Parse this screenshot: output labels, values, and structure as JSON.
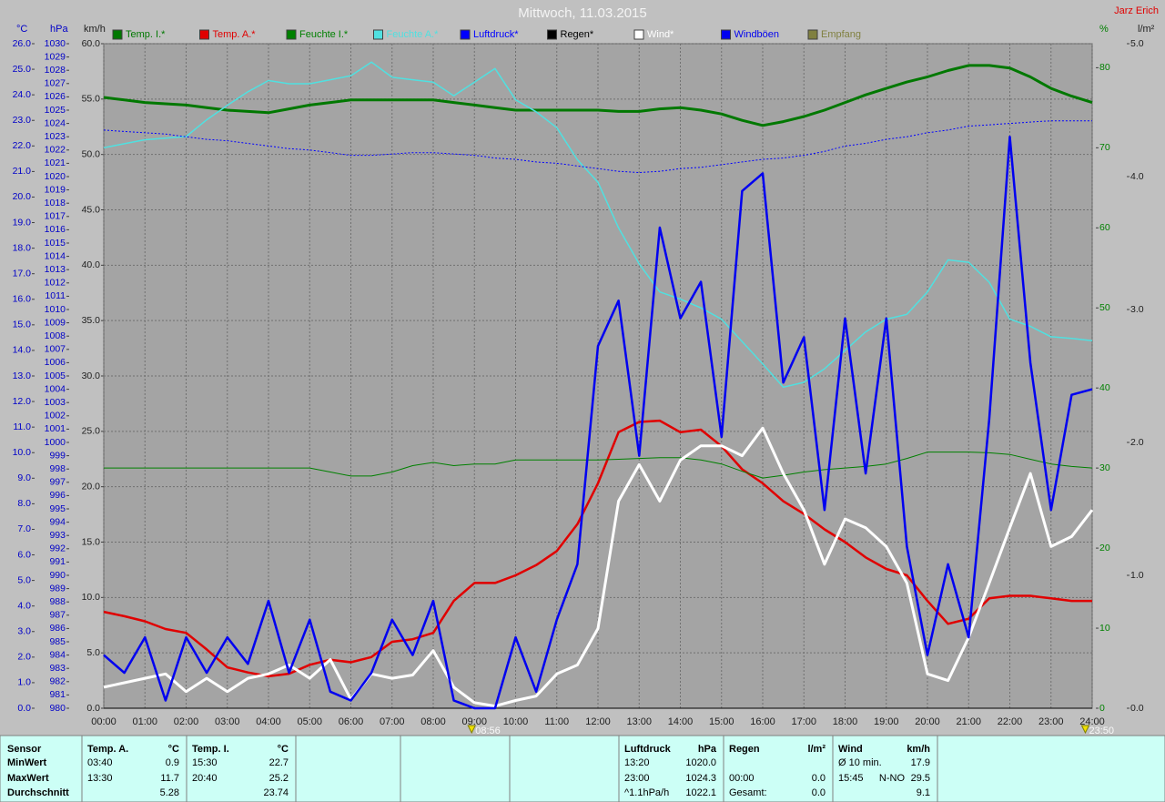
{
  "chart_data": {
    "type": "line",
    "title": "Mittwoch, 11.03.2015",
    "author": "Jarz Erich",
    "xlim": [
      0,
      24
    ],
    "xticks": [
      {
        "value": 0,
        "label": "00:00"
      },
      {
        "value": 1,
        "label": "01:00"
      },
      {
        "value": 2,
        "label": "02:00"
      },
      {
        "value": 3,
        "label": "03:00"
      },
      {
        "value": 4,
        "label": "04:00"
      },
      {
        "value": 5,
        "label": "05:00"
      },
      {
        "value": 6,
        "label": "06:00"
      },
      {
        "value": 7,
        "label": "07:00"
      },
      {
        "value": 8,
        "label": "08:00"
      },
      {
        "value": 9,
        "label": "09:00"
      },
      {
        "value": 10,
        "label": "10:00"
      },
      {
        "value": 11,
        "label": "11:00"
      },
      {
        "value": 12,
        "label": "12:00"
      },
      {
        "value": 13,
        "label": "13:00"
      },
      {
        "value": 14,
        "label": "14:00"
      },
      {
        "value": 15,
        "label": "15:00"
      },
      {
        "value": 16,
        "label": "16:00"
      },
      {
        "value": 17,
        "label": "17:00"
      },
      {
        "value": 18,
        "label": "18:00"
      },
      {
        "value": 19,
        "label": "19:00"
      },
      {
        "value": 20,
        "label": "20:00"
      },
      {
        "value": 21,
        "label": "21:00"
      },
      {
        "value": 22,
        "label": "22:00"
      },
      {
        "value": 23,
        "label": "23:00"
      },
      {
        "value": 24,
        "label": "24:00"
      }
    ],
    "markers": [
      {
        "value": 8.9333,
        "label": "08:56"
      },
      {
        "value": 23.8333,
        "label": "23:50"
      }
    ],
    "axes": [
      {
        "label": "°C",
        "color": "#0000c8",
        "ylim": [
          0,
          26
        ],
        "yticks": [
          {
            "value": 0,
            "label": "0.0"
          },
          {
            "value": 1,
            "label": "1.0"
          },
          {
            "value": 2,
            "label": "2.0"
          },
          {
            "value": 3,
            "label": "3.0"
          },
          {
            "value": 4,
            "label": "4.0"
          },
          {
            "value": 5,
            "label": "5.0"
          },
          {
            "value": 6,
            "label": "6.0"
          },
          {
            "value": 7,
            "label": "7.0"
          },
          {
            "value": 8,
            "label": "8.0"
          },
          {
            "value": 9,
            "label": "9.0"
          },
          {
            "value": 10,
            "label": "10.0"
          },
          {
            "value": 11,
            "label": "11.0"
          },
          {
            "value": 12,
            "label": "12.0"
          },
          {
            "value": 13,
            "label": "13.0"
          },
          {
            "value": 14,
            "label": "14.0"
          },
          {
            "value": 15,
            "label": "15.0"
          },
          {
            "value": 16,
            "label": "16.0"
          },
          {
            "value": 17,
            "label": "17.0"
          },
          {
            "value": 18,
            "label": "18.0"
          },
          {
            "value": 19,
            "label": "19.0"
          },
          {
            "value": 20,
            "label": "20.0"
          },
          {
            "value": 21,
            "label": "21.0"
          },
          {
            "value": 22,
            "label": "22.0"
          },
          {
            "value": 23,
            "label": "23.0"
          },
          {
            "value": 24,
            "label": "24.0"
          },
          {
            "value": 25,
            "label": "25.0"
          },
          {
            "value": 26,
            "label": "26.0"
          }
        ]
      },
      {
        "label": "hPa",
        "color": "#0000c8",
        "ylim": [
          980,
          1030
        ],
        "yticks": [
          980,
          981,
          982,
          983,
          984,
          985,
          986,
          987,
          988,
          989,
          990,
          991,
          992,
          993,
          994,
          995,
          996,
          997,
          998,
          999,
          1000,
          1001,
          1002,
          1003,
          1004,
          1005,
          1006,
          1007,
          1008,
          1009,
          1010,
          1011,
          1012,
          1013,
          1014,
          1015,
          1016,
          1017,
          1018,
          1019,
          1020,
          1021,
          1022,
          1023,
          1024,
          1025,
          1026,
          1027,
          1028,
          1029,
          1030
        ]
      },
      {
        "label": "km/h",
        "color": "#202020",
        "grid": true,
        "ylim": [
          0,
          60
        ],
        "yticks": [
          {
            "value": 0,
            "label": "0.0"
          },
          {
            "value": 5,
            "label": "5.0"
          },
          {
            "value": 10,
            "label": "10.0"
          },
          {
            "value": 15,
            "label": "15.0"
          },
          {
            "value": 20,
            "label": "20.0"
          },
          {
            "value": 25,
            "label": "25.0"
          },
          {
            "value": 30,
            "label": "30.0"
          },
          {
            "value": 35,
            "label": "35.0"
          },
          {
            "value": 40,
            "label": "40.0"
          },
          {
            "value": 45,
            "label": "45.0"
          },
          {
            "value": 50,
            "label": "50.0"
          },
          {
            "value": 55,
            "label": "55.0"
          },
          {
            "value": 60,
            "label": "60.0"
          }
        ]
      },
      {
        "label": "%",
        "color": "#008000",
        "ylim": [
          0,
          83
        ],
        "yticks": [
          0,
          10,
          20,
          30,
          40,
          50,
          60,
          70,
          80
        ]
      },
      {
        "label": "l/m²",
        "color": "#202020",
        "ylim": [
          0,
          5
        ],
        "yticks": [
          {
            "value": 0,
            "label": "0.0"
          },
          {
            "value": 1,
            "label": "1.0"
          },
          {
            "value": 2,
            "label": "2.0"
          },
          {
            "value": 3,
            "label": "3.0"
          },
          {
            "value": 4,
            "label": "4.0"
          },
          {
            "value": 5,
            "label": "5.0"
          }
        ]
      }
    ],
    "x": [
      0,
      0.5,
      1,
      1.5,
      2,
      2.5,
      3,
      3.5,
      4,
      4.5,
      5,
      5.5,
      6,
      6.5,
      7,
      7.5,
      8,
      8.5,
      9,
      9.5,
      10,
      10.5,
      11,
      11.5,
      12,
      12.5,
      13,
      13.5,
      14,
      14.5,
      15,
      15.5,
      16,
      16.5,
      17,
      17.5,
      18,
      18.5,
      19,
      19.5,
      20,
      20.5,
      21,
      21.5,
      22,
      22.5,
      23,
      23.5,
      24
    ],
    "series": [
      {
        "name": "Temp. I.*",
        "color": "#007800",
        "axis": "°C",
        "values": [
          23.9,
          23.8,
          23.7,
          23.65,
          23.6,
          23.5,
          23.4,
          23.35,
          23.3,
          23.45,
          23.6,
          23.7,
          23.8,
          23.8,
          23.8,
          23.8,
          23.8,
          23.7,
          23.6,
          23.5,
          23.4,
          23.4,
          23.4,
          23.4,
          23.4,
          23.35,
          23.35,
          23.45,
          23.5,
          23.4,
          23.25,
          23.0,
          22.8,
          22.95,
          23.15,
          23.4,
          23.7,
          24.0,
          24.25,
          24.5,
          24.7,
          24.95,
          25.15,
          25.15,
          25.05,
          24.7,
          24.25,
          23.95,
          23.7
        ]
      },
      {
        "name": "Temp. A.*",
        "color": "#e00000",
        "axis": "°C",
        "values": [
          3.77,
          3.6,
          3.4,
          3.1,
          2.95,
          2.3,
          1.6,
          1.4,
          1.25,
          1.35,
          1.7,
          1.9,
          1.8,
          2.0,
          2.6,
          2.7,
          2.95,
          4.2,
          4.9,
          4.9,
          5.2,
          5.6,
          6.15,
          7.2,
          8.8,
          10.8,
          11.2,
          11.25,
          10.8,
          10.9,
          10.25,
          9.35,
          8.8,
          8.1,
          7.6,
          7.0,
          6.5,
          5.9,
          5.45,
          5.2,
          4.2,
          3.3,
          3.5,
          4.3,
          4.4,
          4.4,
          4.3,
          4.2,
          4.2
        ]
      },
      {
        "name": "Feuchte I.*",
        "color": "#008000",
        "axis": "%",
        "values": [
          30,
          30,
          30,
          30,
          30,
          30,
          30,
          30,
          30,
          30,
          30,
          29.5,
          29,
          29,
          29.5,
          30.3,
          30.7,
          30.3,
          30.5,
          30.5,
          31,
          31,
          31,
          31,
          31,
          31.1,
          31.2,
          31.3,
          31.3,
          31,
          30.5,
          29.6,
          28.75,
          29.1,
          29.5,
          29.8,
          30,
          30.2,
          30.5,
          31.2,
          32,
          32,
          32,
          31.9,
          31.7,
          31.1,
          30.5,
          30.2,
          30
        ]
      },
      {
        "name": "Feuchte A.*",
        "color": "#50e0e0",
        "axis": "%",
        "values": [
          70,
          70.5,
          71,
          71.2,
          71.4,
          73.5,
          75.3,
          77,
          78.4,
          78,
          78,
          78.5,
          79,
          80.7,
          78.8,
          78.5,
          78.2,
          76.5,
          78.2,
          79.9,
          76,
          74.5,
          72.5,
          68.5,
          65.7,
          60,
          55.5,
          52,
          51.1,
          50,
          48.6,
          45.8,
          43,
          40.1,
          40.7,
          42.4,
          44.7,
          47,
          48.6,
          49.2,
          52,
          56,
          55.7,
          53.2,
          48.6,
          47.7,
          46.4,
          46.2,
          45.9
        ]
      },
      {
        "name": "Luftdruck*",
        "color": "#0000ff",
        "axis": "hPa",
        "dashed": true,
        "values": [
          1023.5,
          1023.4,
          1023.3,
          1023.2,
          1023.0,
          1022.8,
          1022.7,
          1022.5,
          1022.3,
          1022.1,
          1022.0,
          1021.8,
          1021.6,
          1021.6,
          1021.7,
          1021.8,
          1021.8,
          1021.7,
          1021.6,
          1021.4,
          1021.3,
          1021.1,
          1021.0,
          1020.8,
          1020.6,
          1020.4,
          1020.3,
          1020.4,
          1020.6,
          1020.7,
          1020.9,
          1021.1,
          1021.3,
          1021.4,
          1021.6,
          1021.9,
          1022.3,
          1022.5,
          1022.8,
          1023.0,
          1023.3,
          1023.5,
          1023.8,
          1023.9,
          1024.0,
          1024.1,
          1024.2,
          1024.2,
          1024.2
        ]
      },
      {
        "name": "Regen*",
        "color": "#000000",
        "axis": "l/m²",
        "values": [
          0,
          0,
          0,
          0,
          0,
          0,
          0,
          0,
          0,
          0,
          0,
          0,
          0,
          0,
          0,
          0,
          0,
          0,
          0,
          0,
          0,
          0,
          0,
          0,
          0,
          0,
          0,
          0,
          0,
          0,
          0,
          0,
          0,
          0,
          0,
          0,
          0,
          0,
          0,
          0,
          0,
          0,
          0,
          0,
          0,
          0,
          0,
          0,
          0
        ]
      },
      {
        "name": "Wind*",
        "color": "#ffffff",
        "axis": "km/h",
        "values": [
          1.9,
          2.3,
          2.7,
          3.1,
          1.5,
          2.7,
          1.5,
          2.7,
          3.1,
          3.9,
          2.7,
          4.4,
          0.8,
          3.1,
          2.7,
          3.0,
          5.2,
          1.9,
          0.5,
          0.2,
          0.7,
          1.1,
          3.1,
          3.9,
          7.2,
          18.7,
          22.0,
          18.7,
          22.4,
          23.7,
          23.7,
          22.8,
          25.3,
          21.2,
          17.9,
          13.0,
          17.1,
          16.3,
          14.6,
          11.3,
          3.1,
          2.5,
          6.4,
          11.3,
          16.3,
          21.2,
          14.6,
          15.5,
          17.9
        ]
      },
      {
        "name": "Windböen",
        "color": "#0000f0",
        "axis": "km/h",
        "values": [
          4.8,
          3.2,
          6.4,
          0.7,
          6.4,
          3.2,
          6.4,
          4.0,
          9.7,
          3.2,
          8.0,
          1.5,
          0.7,
          3.2,
          8.0,
          4.8,
          9.7,
          0.7,
          0,
          0,
          6.4,
          1.5,
          8.0,
          13.0,
          32.7,
          36.8,
          22.8,
          43.4,
          35.2,
          38.5,
          24.5,
          46.7,
          48.3,
          29.4,
          33.5,
          17.9,
          35.2,
          21.2,
          35.2,
          14.6,
          4.8,
          13.0,
          6.4,
          26.1,
          51.6,
          31.2,
          17.9,
          28.3,
          28.8
        ]
      },
      {
        "name": "Empfang",
        "color": "#808040"
      }
    ]
  },
  "stats": {
    "row_labels": [
      "Sensor",
      "MinWert",
      "MaxWert",
      "Durchschnitt"
    ],
    "blocks": [
      {
        "title": "Temp. A.",
        "unit": "°C",
        "rows": [
          [
            "03:40",
            "0.9"
          ],
          [
            "13:30",
            "11.7"
          ],
          [
            null,
            "5.28"
          ]
        ]
      },
      {
        "title": "Temp. I.",
        "unit": "°C",
        "rows": [
          [
            "15:30",
            "22.7"
          ],
          [
            "20:40",
            "25.2"
          ],
          [
            null,
            "23.74"
          ]
        ]
      },
      {
        "title": "Luftdruck",
        "unit": "hPa",
        "rows": [
          [
            "13:20",
            "1020.0"
          ],
          [
            "23:00",
            "1024.3"
          ],
          [
            "^1.1hPa/h",
            "1022.1"
          ]
        ]
      },
      {
        "title": "Regen",
        "unit": "l/m²",
        "rows": [
          [
            null,
            null
          ],
          [
            "00:00",
            "0.0"
          ],
          [
            "Gesamt:",
            "0.0"
          ]
        ]
      },
      {
        "title": "Wind",
        "unit": "km/h",
        "rows": [
          [
            "Ø 10 min.",
            null,
            "17.9"
          ],
          [
            "15:45",
            "N-NO",
            "29.5"
          ],
          [
            null,
            null,
            "9.1"
          ]
        ]
      }
    ]
  }
}
